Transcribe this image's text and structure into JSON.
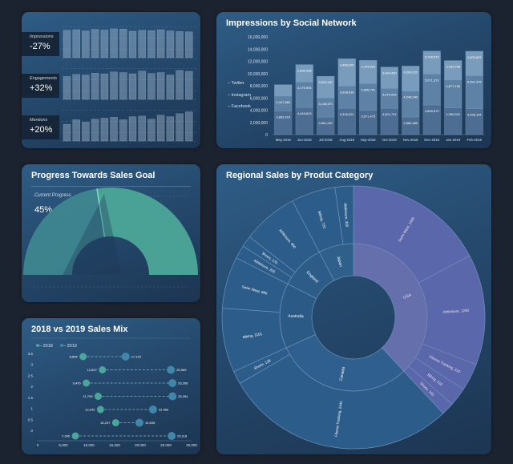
{
  "metrics": [
    {
      "name": "Impressions",
      "value": "-27%",
      "bars": [
        0.9,
        0.92,
        0.88,
        0.93,
        0.91,
        0.95,
        0.94,
        0.87,
        0.9,
        0.89,
        0.92,
        0.88,
        0.86,
        0.85
      ]
    },
    {
      "name": "Engagements",
      "value": "+32%",
      "bars": [
        0.75,
        0.82,
        0.8,
        0.86,
        0.84,
        0.9,
        0.88,
        0.84,
        0.93,
        0.85,
        0.88,
        0.8,
        0.95,
        0.92
      ]
    },
    {
      "name": "Mentions",
      "value": "+20%",
      "bars": [
        0.55,
        0.7,
        0.62,
        0.72,
        0.75,
        0.78,
        0.7,
        0.8,
        0.82,
        0.72,
        0.85,
        0.8,
        0.9,
        0.96
      ]
    }
  ],
  "impressions": {
    "title": "Impressions by Social Network",
    "legend": [
      "Twitter",
      "Instagram",
      "Facebook"
    ],
    "colors": {
      "facebook": "#4d6d92",
      "instagram": "#5e82a6",
      "twitter": "#7a9cbc"
    },
    "yticks": [
      "16,000,000",
      "14,000,000",
      "12,000,000",
      "10,000,000",
      "8,000,000",
      "6,000,000",
      "4,000,000",
      "2,000,000",
      "0"
    ]
  },
  "chart_data": [
    {
      "type": "bar",
      "title": "Impressions by Social Network",
      "stacked": true,
      "categories": [
        "May-2018",
        "Jun-2018",
        "Jul-2018",
        "Aug-2018",
        "Sep-2018",
        "Oct-2018",
        "Nov-2018",
        "Dec-2018",
        "Jan-2019",
        "Feb-2019"
      ],
      "series": [
        {
          "name": "Facebook",
          "values": [
            3883915,
            4449813,
            2881087,
            4318321,
            3971475,
            4301721,
            2882585,
            4855870,
            4359531,
            4258104
          ]
        },
        {
          "name": "Instagram",
          "values": [
            2427881,
            4179594,
            3148571,
            3638618,
            4385791,
            3270009,
            4245049,
            5071372,
            4577106,
            5391476
          ]
        },
        {
          "name": "Twitter",
          "values": [
            1860000,
            2830338,
            3519267,
            4468020,
            3794823,
            3494430,
            4093022,
            3748572,
            3182638,
            4005803
          ]
        }
      ],
      "value_labels": {
        "Facebook": [
          "3,883,915",
          "4,449,813",
          "2,881,087",
          "4,318,321",
          "3,971,475",
          "4,301,721",
          "2,882,585",
          "4,855,870",
          "4,359,531",
          "4,258,104"
        ],
        "Instagram": [
          "2,427,881",
          "4,179,594",
          "3,148,571",
          "3,638,618",
          "4,385,791",
          "3,270,009",
          "4,245,049",
          "5,071,372",
          "4,577,106",
          "5,391,476"
        ],
        "Twitter": [
          "",
          "2,830,338",
          "3,519,267",
          "4,468,020",
          "3,794,823",
          "3,494,430",
          "4,093,022",
          "3,748,572",
          "3,182,638",
          "4,005,803"
        ]
      },
      "ylim": [
        0,
        16000000
      ],
      "legend": "left"
    },
    {
      "type": "gauge",
      "title": "Progress Towards Sales Goal",
      "label": "Current Progress",
      "value": 45,
      "value_text": "45%"
    },
    {
      "type": "dumbbell",
      "title": "2018 vs 2019 Sales Mix",
      "legend": [
        "2018",
        "2019"
      ],
      "colors": {
        "2018": "#4aa59a",
        "2019": "#3f86a8"
      },
      "y": [
        3,
        2.5,
        2,
        1.5,
        1,
        0.5
      ],
      "pairs_y": [
        3,
        2.5,
        2,
        1.5,
        1,
        0.5,
        0
      ],
      "rows": [
        {
          "v2018": 8854,
          "v2019": 17142,
          "l2018": "8,854",
          "l2019": "17,142"
        },
        {
          "v2018": 12627,
          "v2019": 25969,
          "l2018": "12,627",
          "l2019": "25,969"
        },
        {
          "v2018": 9476,
          "v2019": 26268,
          "l2018": "9,476",
          "l2019": "26,268"
        },
        {
          "v2018": 11793,
          "v2019": 26284,
          "l2018": "11,793",
          "l2019": "26,284"
        },
        {
          "v2018": 12242,
          "v2019": 22483,
          "l2018": "12,242",
          "l2019": "22,483"
        },
        {
          "v2018": 15207,
          "v2019": 19835,
          "l2018": "15,207",
          "l2019": "19,835"
        },
        {
          "v2018": 7345,
          "v2019": 26118,
          "l2018": "7,345",
          "l2019": "26,118"
        }
      ],
      "xticks": [
        "0",
        "5,000",
        "10,000",
        "15,000",
        "20,000",
        "25,000",
        "30,000"
      ],
      "yticks": [
        "3.5",
        "3",
        "2.5",
        "2",
        "1.5",
        "1",
        "0.5",
        "0"
      ],
      "xlim": [
        0,
        30000
      ],
      "ylim": [
        0,
        3.5
      ]
    },
    {
      "type": "sunburst",
      "title": "Regional Sales by Produt Category",
      "inner": [
        {
          "name": "USA",
          "value": 4060
        },
        {
          "name": "Canada",
          "value": 3220
        },
        {
          "name": "Australia",
          "value": 1520
        },
        {
          "name": "England",
          "value": 1050
        },
        {
          "name": "Japan",
          "value": 820
        }
      ],
      "outer": [
        {
          "parent": "USA",
          "name": "Swim Wear, 1580",
          "value": 1580
        },
        {
          "parent": "USA",
          "name": "Athleisure, 1250",
          "value": 1250
        },
        {
          "parent": "USA",
          "name": "Fitness Tracking, 310",
          "value": 310
        },
        {
          "parent": "USA",
          "name": "Biking, 210",
          "value": 210
        },
        {
          "parent": "USA",
          "name": "Shoes, 140",
          "value": 140
        },
        {
          "parent": "Canada",
          "name": "Fitness Tracking, 2441",
          "value": 2441
        },
        {
          "parent": "Canada",
          "name": "Shoes, 138",
          "value": 138
        },
        {
          "parent": "Australia",
          "name": "Biking, 1101",
          "value": 1101
        },
        {
          "parent": "Australia",
          "name": "Swim Wear, 890",
          "value": 890
        },
        {
          "parent": "England",
          "name": "Athleisure, 205",
          "value": 205
        },
        {
          "parent": "England",
          "name": "Shoes, 170",
          "value": 170
        },
        {
          "parent": "England",
          "name": "Athleisure, 850",
          "value": 850
        },
        {
          "parent": "Japan",
          "name": "Biking, 720",
          "value": 720
        },
        {
          "parent": "Japan",
          "name": "Athleisure, 300",
          "value": 300
        }
      ]
    }
  ]
}
